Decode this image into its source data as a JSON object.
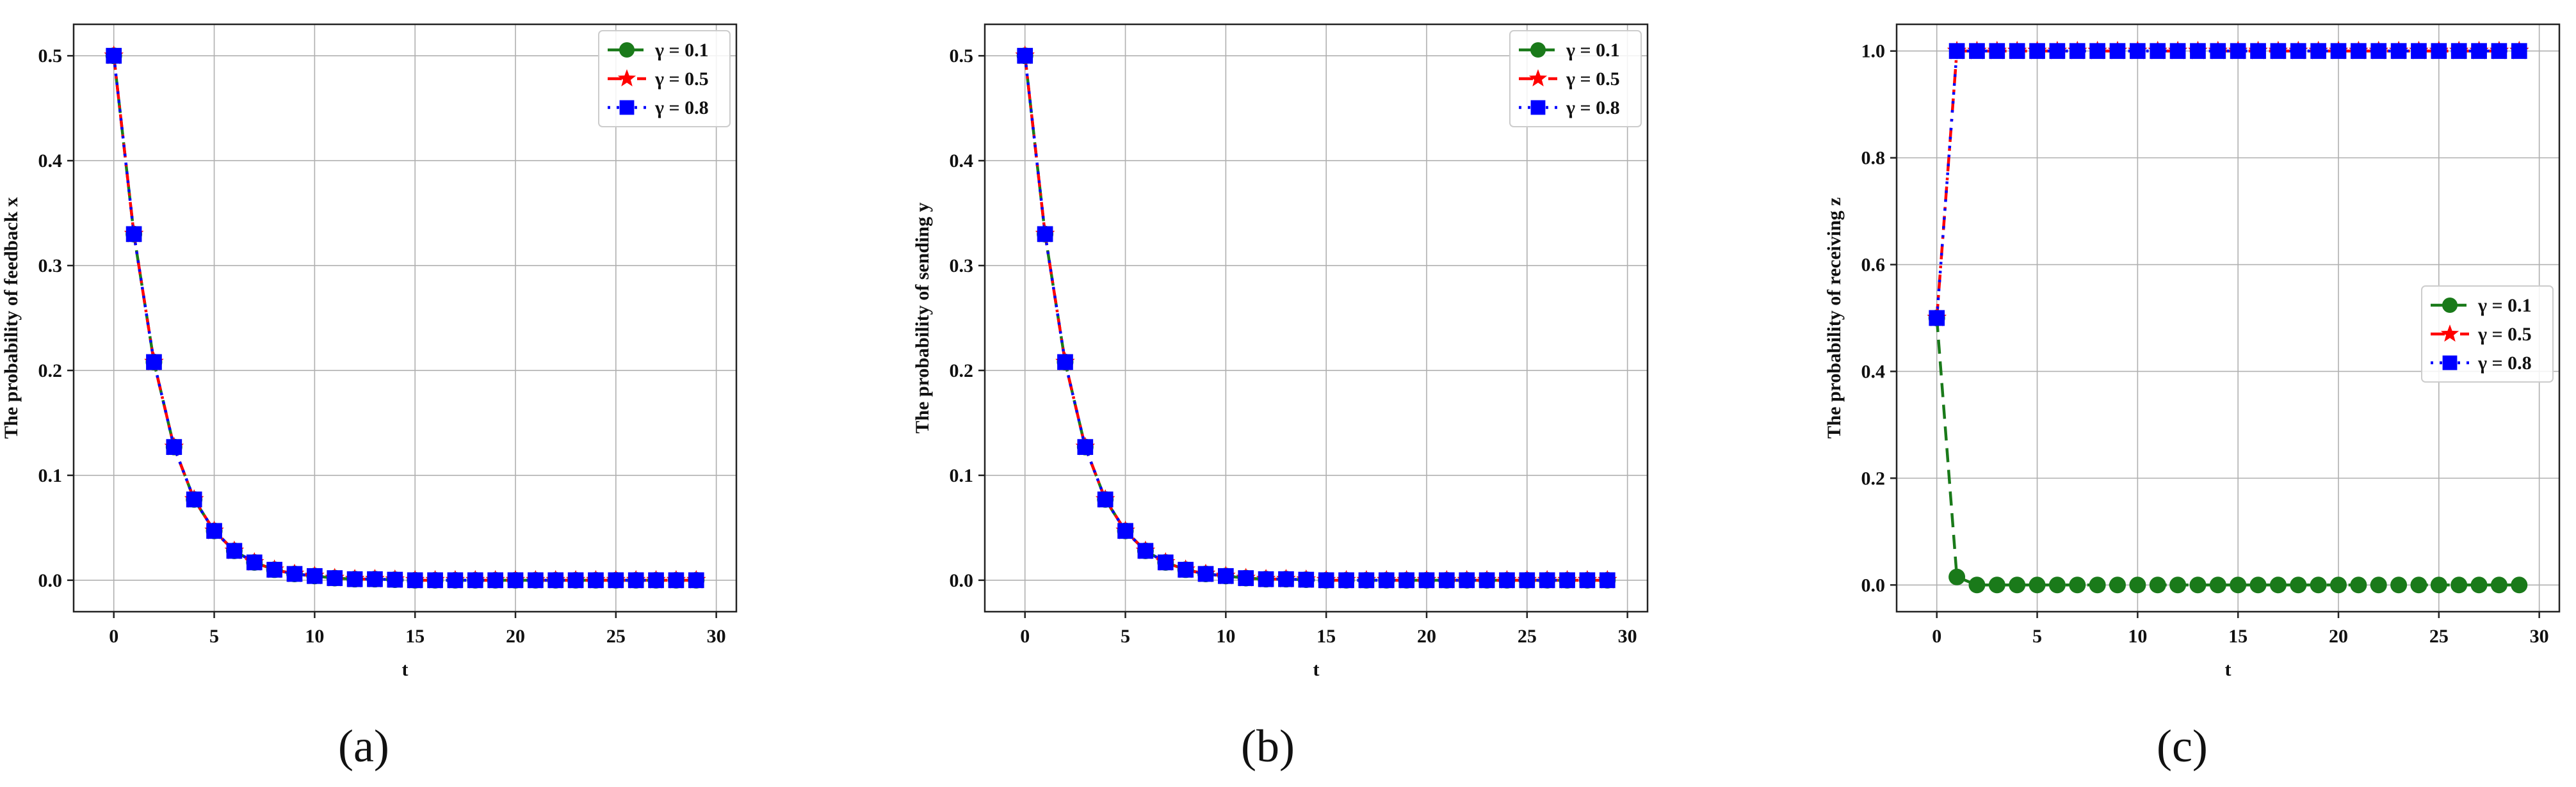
{
  "chart_data": [
    {
      "type": "line",
      "panel_label": "(a)",
      "xlabel": "t",
      "ylabel": "The probability of feedback x",
      "xlim": [
        -2,
        31
      ],
      "ylim": [
        -0.03,
        0.53
      ],
      "xticks": [
        0,
        5,
        10,
        15,
        20,
        25,
        30
      ],
      "yticks": [
        0.0,
        0.1,
        0.2,
        0.3,
        0.4,
        0.5
      ],
      "ytick_labels": [
        "0.0",
        "0.1",
        "0.2",
        "0.3",
        "0.4",
        "0.5"
      ],
      "grid": true,
      "legend_position": "top-right",
      "x": [
        0,
        1,
        2,
        3,
        4,
        5,
        6,
        7,
        8,
        9,
        10,
        11,
        12,
        13,
        14,
        15,
        16,
        17,
        18,
        19,
        20,
        21,
        22,
        23,
        24,
        25,
        26,
        27,
        28,
        29
      ],
      "series": [
        {
          "name": "γ = 0.1",
          "color": "#1a7a1a",
          "dash": "dashed",
          "marker": "circle",
          "values": [
            0.5,
            0.33,
            0.208,
            0.127,
            0.077,
            0.047,
            0.028,
            0.017,
            0.01,
            0.006,
            0.004,
            0.002,
            0.001,
            0.001,
            0.0005,
            0,
            0,
            0,
            0,
            0,
            0,
            0,
            0,
            0,
            0,
            0,
            0,
            0,
            0,
            0
          ]
        },
        {
          "name": "γ = 0.5",
          "color": "#ff0000",
          "dash": "dashdot",
          "marker": "star",
          "values": [
            0.5,
            0.33,
            0.208,
            0.127,
            0.077,
            0.047,
            0.028,
            0.017,
            0.01,
            0.006,
            0.004,
            0.002,
            0.001,
            0.001,
            0.0005,
            0,
            0,
            0,
            0,
            0,
            0,
            0,
            0,
            0,
            0,
            0,
            0,
            0,
            0,
            0
          ]
        },
        {
          "name": "γ = 0.8",
          "color": "#0000ff",
          "dash": "dotted",
          "marker": "square",
          "values": [
            0.5,
            0.33,
            0.208,
            0.127,
            0.077,
            0.047,
            0.028,
            0.017,
            0.01,
            0.006,
            0.004,
            0.002,
            0.001,
            0.001,
            0.0005,
            0,
            0,
            0,
            0,
            0,
            0,
            0,
            0,
            0,
            0,
            0,
            0,
            0,
            0,
            0
          ]
        }
      ]
    },
    {
      "type": "line",
      "panel_label": "(b)",
      "xlabel": "t",
      "ylabel": "The probability of sending y",
      "xlim": [
        -2,
        31
      ],
      "ylim": [
        -0.03,
        0.53
      ],
      "xticks": [
        0,
        5,
        10,
        15,
        20,
        25,
        30
      ],
      "yticks": [
        0.0,
        0.1,
        0.2,
        0.3,
        0.4,
        0.5
      ],
      "ytick_labels": [
        "0.0",
        "0.1",
        "0.2",
        "0.3",
        "0.4",
        "0.5"
      ],
      "grid": true,
      "legend_position": "top-right",
      "x": [
        0,
        1,
        2,
        3,
        4,
        5,
        6,
        7,
        8,
        9,
        10,
        11,
        12,
        13,
        14,
        15,
        16,
        17,
        18,
        19,
        20,
        21,
        22,
        23,
        24,
        25,
        26,
        27,
        28,
        29
      ],
      "series": [
        {
          "name": "γ = 0.1",
          "color": "#1a7a1a",
          "dash": "dashed",
          "marker": "circle",
          "values": [
            0.5,
            0.33,
            0.208,
            0.127,
            0.077,
            0.047,
            0.028,
            0.017,
            0.01,
            0.006,
            0.004,
            0.002,
            0.001,
            0.001,
            0.0005,
            0,
            0,
            0,
            0,
            0,
            0,
            0,
            0,
            0,
            0,
            0,
            0,
            0,
            0,
            0
          ]
        },
        {
          "name": "γ = 0.5",
          "color": "#ff0000",
          "dash": "dashdot",
          "marker": "star",
          "values": [
            0.5,
            0.33,
            0.208,
            0.127,
            0.077,
            0.047,
            0.028,
            0.017,
            0.01,
            0.006,
            0.004,
            0.002,
            0.001,
            0.001,
            0.0005,
            0,
            0,
            0,
            0,
            0,
            0,
            0,
            0,
            0,
            0,
            0,
            0,
            0,
            0,
            0
          ]
        },
        {
          "name": "γ = 0.8",
          "color": "#0000ff",
          "dash": "dotted",
          "marker": "square",
          "values": [
            0.5,
            0.33,
            0.208,
            0.127,
            0.077,
            0.047,
            0.028,
            0.017,
            0.01,
            0.006,
            0.004,
            0.002,
            0.001,
            0.001,
            0.0005,
            0,
            0,
            0,
            0,
            0,
            0,
            0,
            0,
            0,
            0,
            0,
            0,
            0,
            0,
            0
          ]
        }
      ]
    },
    {
      "type": "line",
      "panel_label": "(c)",
      "xlabel": "t",
      "ylabel": "The probability of receiving z",
      "xlim": [
        -2,
        31
      ],
      "ylim": [
        -0.05,
        1.05
      ],
      "xticks": [
        0,
        5,
        10,
        15,
        20,
        25,
        30
      ],
      "yticks": [
        0.0,
        0.2,
        0.4,
        0.6,
        0.8,
        1.0
      ],
      "ytick_labels": [
        "0.0",
        "0.2",
        "0.4",
        "0.6",
        "0.8",
        "1.0"
      ],
      "grid": true,
      "legend_position": "center-right",
      "x": [
        0,
        1,
        2,
        3,
        4,
        5,
        6,
        7,
        8,
        9,
        10,
        11,
        12,
        13,
        14,
        15,
        16,
        17,
        18,
        19,
        20,
        21,
        22,
        23,
        24,
        25,
        26,
        27,
        28,
        29
      ],
      "series": [
        {
          "name": "γ = 0.1",
          "color": "#1a7a1a",
          "dash": "dashed",
          "marker": "circle",
          "values": [
            0.5,
            0.015,
            0,
            0,
            0,
            0,
            0,
            0,
            0,
            0,
            0,
            0,
            0,
            0,
            0,
            0,
            0,
            0,
            0,
            0,
            0,
            0,
            0,
            0,
            0,
            0,
            0,
            0,
            0,
            0
          ]
        },
        {
          "name": "γ = 0.5",
          "color": "#ff0000",
          "dash": "dashdot",
          "marker": "star",
          "values": [
            0.5,
            1,
            1,
            1,
            1,
            1,
            1,
            1,
            1,
            1,
            1,
            1,
            1,
            1,
            1,
            1,
            1,
            1,
            1,
            1,
            1,
            1,
            1,
            1,
            1,
            1,
            1,
            1,
            1,
            1
          ]
        },
        {
          "name": "γ = 0.8",
          "color": "#0000ff",
          "dash": "dotted",
          "marker": "square",
          "values": [
            0.5,
            1,
            1,
            1,
            1,
            1,
            1,
            1,
            1,
            1,
            1,
            1,
            1,
            1,
            1,
            1,
            1,
            1,
            1,
            1,
            1,
            1,
            1,
            1,
            1,
            1,
            1,
            1,
            1,
            1
          ]
        }
      ]
    }
  ]
}
